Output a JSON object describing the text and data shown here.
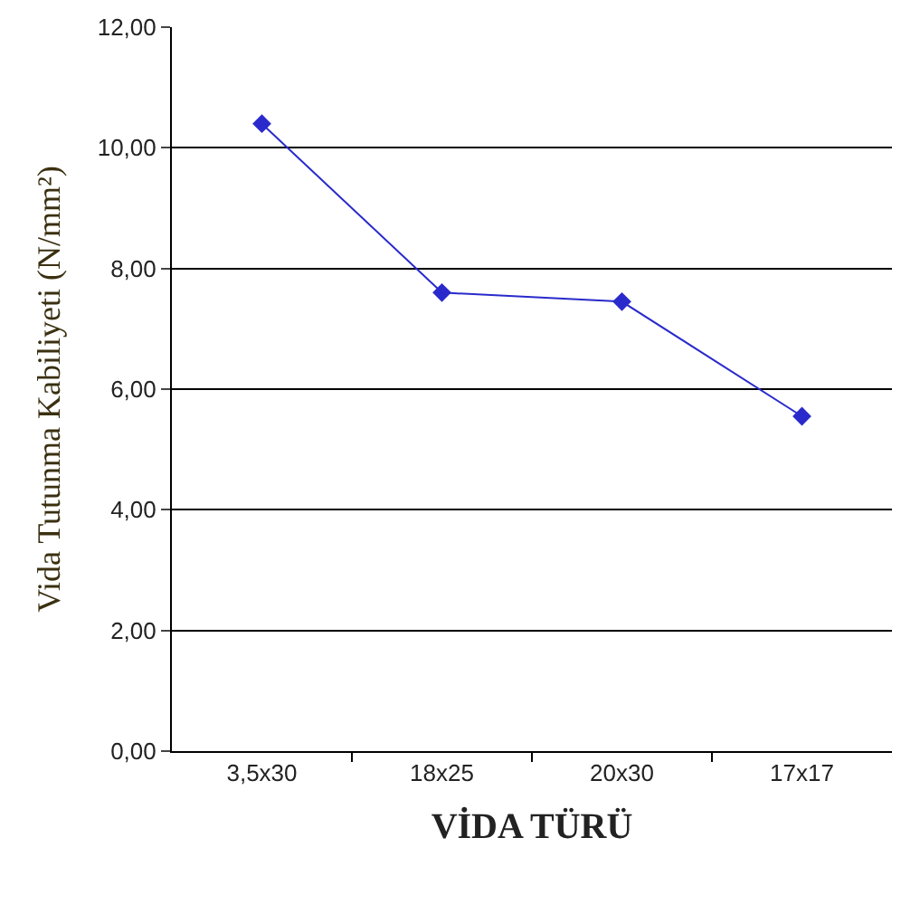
{
  "chart_data": {
    "type": "line",
    "categories": [
      "3,5x30",
      "18x25",
      "20x30",
      "17x17"
    ],
    "series": [
      {
        "color": "#2a2acc",
        "values": [
          10.4,
          7.6,
          7.45,
          5.55
        ]
      }
    ],
    "xlabel": "VİDA TÜRÜ",
    "ylabel": "Vida Tutunma Kabiliyeti (N/mm²)",
    "ylim": [
      0,
      12
    ],
    "yticks": [
      {
        "value": 0,
        "label": "0,00"
      },
      {
        "value": 2,
        "label": "2,00"
      },
      {
        "value": 4,
        "label": "4,00"
      },
      {
        "value": 6,
        "label": "6,00"
      },
      {
        "value": 8,
        "label": "8,00"
      },
      {
        "value": 10,
        "label": "10,00"
      },
      {
        "value": 12,
        "label": "12,00"
      }
    ],
    "grid": "y",
    "marker": "diamond",
    "line_style": "solid",
    "legend": false
  }
}
